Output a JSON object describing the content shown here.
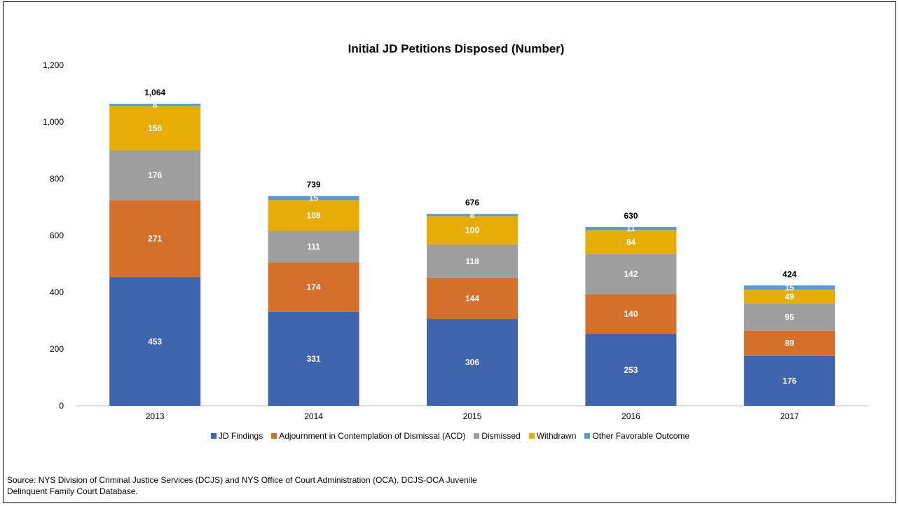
{
  "chart_data": {
    "type": "bar",
    "stacked": true,
    "title": "Initial JD Petitions Disposed (Number)",
    "xlabel": "",
    "ylabel": "",
    "categories": [
      "2013",
      "2014",
      "2015",
      "2016",
      "2017"
    ],
    "ylim": [
      0,
      1200
    ],
    "yticks": [
      0,
      200,
      400,
      600,
      800,
      1000,
      1200
    ],
    "ytick_labels": [
      "0",
      "200",
      "400",
      "600",
      "800",
      "1,000",
      "1,200"
    ],
    "grid": false,
    "legend_position": "bottom",
    "series": [
      {
        "name": "JD Findings",
        "color": "#3E64AE",
        "values": [
          453,
          331,
          306,
          253,
          176
        ]
      },
      {
        "name": "Adjournment in Contemplation of Dismissal (ACD)",
        "color": "#D5702C",
        "values": [
          271,
          174,
          144,
          140,
          89
        ]
      },
      {
        "name": "Dismissed",
        "color": "#9E9E9E",
        "values": [
          176,
          111,
          118,
          142,
          95
        ]
      },
      {
        "name": "Withdrawn",
        "color": "#E6AD07",
        "values": [
          156,
          108,
          100,
          84,
          49
        ]
      },
      {
        "name": "Other Favorable Outcome",
        "color": "#5B9BD5",
        "values": [
          8,
          15,
          8,
          11,
          15
        ]
      }
    ],
    "totals": [
      "1,064",
      "739",
      "676",
      "630",
      "424"
    ]
  },
  "source": {
    "line1": "Source: NYS Division of Criminal Justice Services (DCJS) and NYS Office of Court Administration (OCA), DCJS-OCA Juvenile",
    "line2": "Delinquent Family Court Database."
  }
}
